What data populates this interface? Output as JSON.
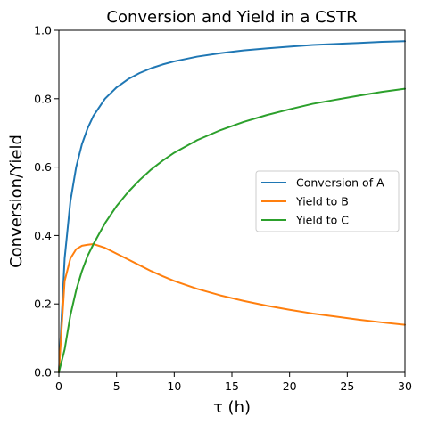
{
  "chart_data": {
    "type": "line",
    "title": "Conversion and Yield in a CSTR",
    "xlabel": "τ (h)",
    "ylabel": "Conversion/Yield",
    "xlim": [
      0,
      30
    ],
    "ylim": [
      0,
      1.0
    ],
    "x_ticks": [
      "0",
      "5",
      "10",
      "15",
      "20",
      "25",
      "30"
    ],
    "y_ticks": [
      "0.0",
      "0.2",
      "0.4",
      "0.6",
      "0.8",
      "1.0"
    ],
    "grid": false,
    "legend_position": "center-right",
    "x": [
      0,
      0.5,
      1,
      1.5,
      2,
      2.5,
      3,
      4,
      5,
      6,
      7,
      8,
      9,
      10,
      12,
      14,
      16,
      18,
      20,
      22,
      24,
      26,
      28,
      30
    ],
    "series": [
      {
        "name": "Conversion of A",
        "color": "#1f77b4",
        "values": [
          0.0,
          0.333,
          0.5,
          0.6,
          0.667,
          0.714,
          0.75,
          0.8,
          0.833,
          0.857,
          0.875,
          0.889,
          0.9,
          0.909,
          0.923,
          0.933,
          0.941,
          0.947,
          0.952,
          0.957,
          0.96,
          0.963,
          0.966,
          0.968
        ]
      },
      {
        "name": "Yield to B",
        "color": "#ff7f0e",
        "values": [
          0.0,
          0.267,
          0.333,
          0.36,
          0.37,
          0.373,
          0.375,
          0.364,
          0.347,
          0.33,
          0.313,
          0.296,
          0.281,
          0.267,
          0.244,
          0.225,
          0.209,
          0.195,
          0.183,
          0.172,
          0.163,
          0.154,
          0.146,
          0.139
        ]
      },
      {
        "name": "Yield to C",
        "color": "#2ca02c",
        "values": [
          0.0,
          0.067,
          0.167,
          0.24,
          0.296,
          0.341,
          0.375,
          0.436,
          0.486,
          0.527,
          0.562,
          0.593,
          0.619,
          0.642,
          0.679,
          0.708,
          0.732,
          0.752,
          0.769,
          0.785,
          0.797,
          0.809,
          0.82,
          0.829
        ]
      }
    ]
  }
}
